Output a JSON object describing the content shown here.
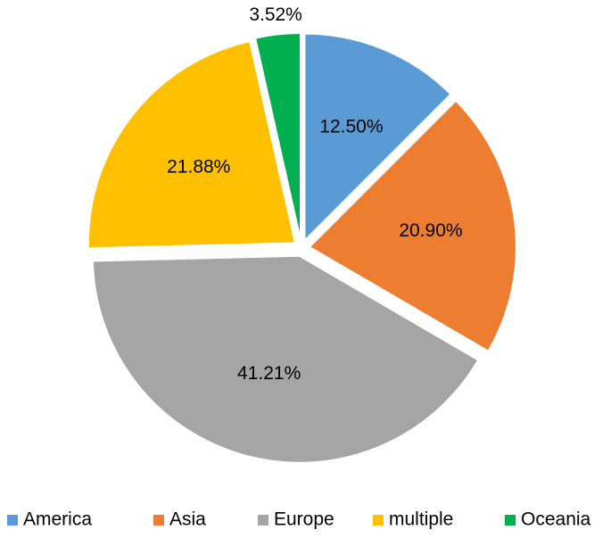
{
  "chart_data": {
    "type": "pie",
    "categories": [
      "America",
      "Asia",
      "Europe",
      "multiple",
      "Oceania"
    ],
    "values": [
      12.5,
      20.9,
      41.21,
      21.88,
      3.52
    ],
    "value_labels": [
      "12.50%",
      "20.90%",
      "41.21%",
      "21.88%",
      "3.52%"
    ],
    "colors": [
      "#5b9bd5",
      "#ed7d31",
      "#a5a5a5",
      "#ffc000",
      "#00b050"
    ],
    "legend": "bottom"
  }
}
